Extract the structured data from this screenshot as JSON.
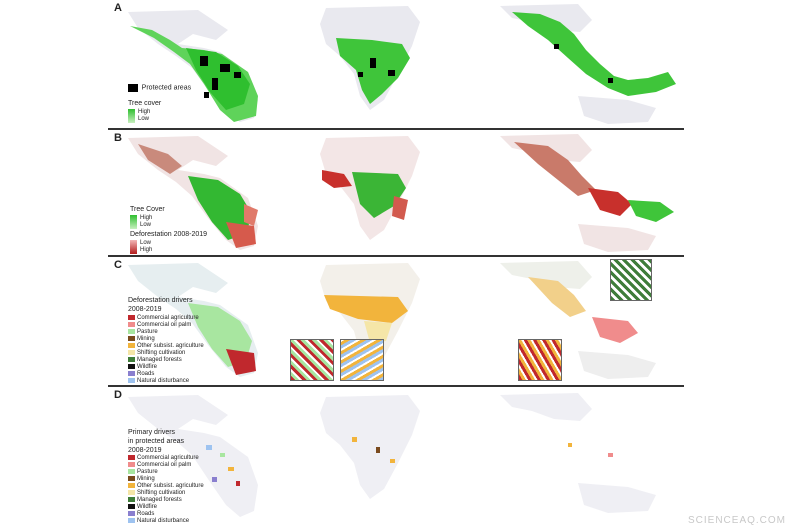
{
  "panels": {
    "a": {
      "letter": "A",
      "legend": {
        "protected_label": "Protected areas",
        "tree_cover_title": "Tree cover",
        "high": "High",
        "low": "Low"
      }
    },
    "b": {
      "letter": "B",
      "legend": {
        "tree_cover_title": "Tree Cover",
        "high": "High",
        "low": "Low",
        "deforestation_title": "Deforestation 2008-2019",
        "def_low": "Low",
        "def_high": "High"
      }
    },
    "c": {
      "letter": "C",
      "legend": {
        "title_line1": "Deforestation drivers",
        "title_line2": "2008-2019"
      }
    },
    "d": {
      "letter": "D",
      "legend": {
        "title_line1": "Primary drivers",
        "title_line2": "in protected areas",
        "title_line3": "2008-2019"
      }
    }
  },
  "drivers": [
    {
      "label": "Commercial agriculture",
      "color": "#c0282d"
    },
    {
      "label": "Commercial oil palm",
      "color": "#f08c8c"
    },
    {
      "label": "Pasture",
      "color": "#a8e6a0"
    },
    {
      "label": "Mining",
      "color": "#7a4a1e"
    },
    {
      "label": "Other subsist. agriculture",
      "color": "#f2b43c"
    },
    {
      "label": "Shifting cultivation",
      "color": "#f5e6a8"
    },
    {
      "label": "Managed forests",
      "color": "#3f7d3a"
    },
    {
      "label": "Wildfire",
      "color": "#111111"
    },
    {
      "label": "Roads",
      "color": "#8a7fcf"
    },
    {
      "label": "Natural disturbance",
      "color": "#9ec3f0"
    }
  ],
  "colors": {
    "land_gray": "#e9e9ef",
    "tree_high": "#2fbf2f",
    "tree_low": "#c9f0c0",
    "protected": "#000000",
    "def_low": "#f3b7b7",
    "def_high": "#b31b1b"
  },
  "watermark": "SCIENCEAQ.COM"
}
